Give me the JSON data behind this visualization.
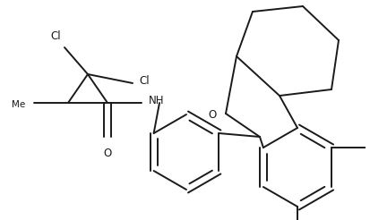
{
  "bg_color": "#ffffff",
  "line_color": "#1a1a1a",
  "lw": 1.4,
  "fs": 8.5,
  "figsize": [
    4.13,
    2.46
  ],
  "dpi": 100,
  "xlim": [
    0,
    413
  ],
  "ylim": [
    0,
    246
  ]
}
